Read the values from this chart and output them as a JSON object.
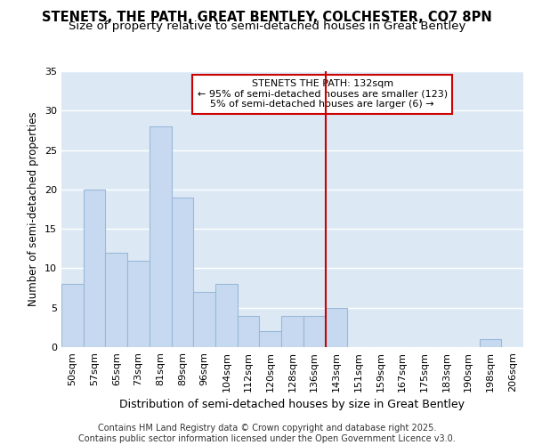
{
  "title1": "STENETS, THE PATH, GREAT BENTLEY, COLCHESTER, CO7 8PN",
  "title2": "Size of property relative to semi-detached houses in Great Bentley",
  "xlabel": "Distribution of semi-detached houses by size in Great Bentley",
  "ylabel": "Number of semi-detached properties",
  "categories": [
    "50sqm",
    "57sqm",
    "65sqm",
    "73sqm",
    "81sqm",
    "89sqm",
    "96sqm",
    "104sqm",
    "112sqm",
    "120sqm",
    "128sqm",
    "136sqm",
    "143sqm",
    "151sqm",
    "159sqm",
    "167sqm",
    "175sqm",
    "183sqm",
    "190sqm",
    "198sqm",
    "206sqm"
  ],
  "values": [
    8,
    20,
    12,
    11,
    28,
    19,
    7,
    8,
    4,
    2,
    4,
    4,
    5,
    0,
    0,
    0,
    0,
    0,
    0,
    1,
    0
  ],
  "bar_color": "#c6d9f0",
  "bar_edgecolor": "#9ab8d8",
  "background_color": "#dce9f5",
  "grid_color": "#ffffff",
  "red_line_color": "#cc0000",
  "annotation_text": "STENETS THE PATH: 132sqm\n← 95% of semi-detached houses are smaller (123)\n5% of semi-detached houses are larger (6) →",
  "annotation_box_facecolor": "#ffffff",
  "annotation_box_edgecolor": "#cc0000",
  "footer_text": "Contains HM Land Registry data © Crown copyright and database right 2025.\nContains public sector information licensed under the Open Government Licence v3.0.",
  "ylim": [
    0,
    35
  ],
  "yticks": [
    0,
    5,
    10,
    15,
    20,
    25,
    30,
    35
  ],
  "title1_fontsize": 10.5,
  "title2_fontsize": 9.5,
  "xlabel_fontsize": 9,
  "ylabel_fontsize": 8.5,
  "tick_fontsize": 8,
  "footer_fontsize": 7,
  "red_line_x": 11.5
}
